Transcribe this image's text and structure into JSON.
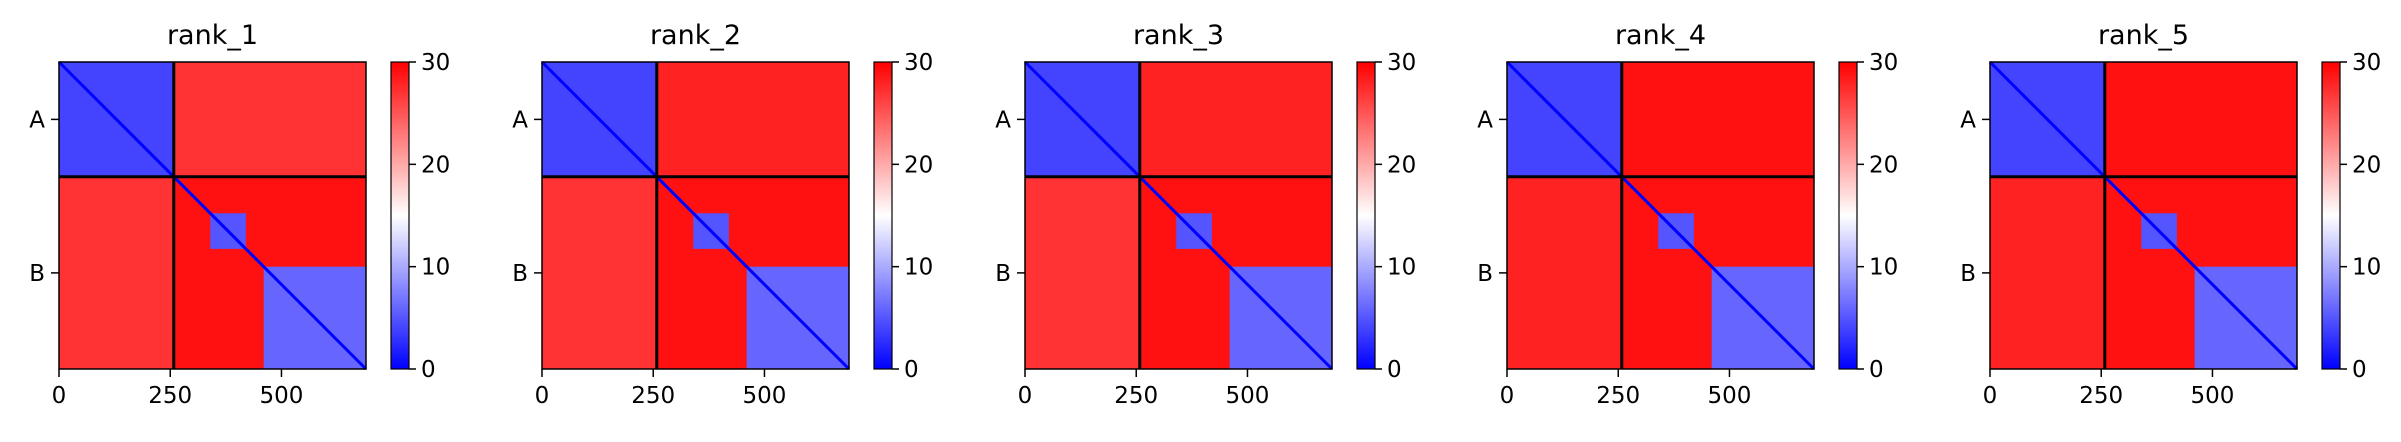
{
  "colorbar": {
    "ticks": [
      "0",
      "10",
      "20",
      "30"
    ],
    "vmin": 0,
    "vmax": 30,
    "colors": {
      "low": "#0000ff",
      "mid": "#ffffff",
      "high": "#ff0000"
    }
  },
  "chart_data": [
    {
      "type": "heatmap",
      "title": "rank_1",
      "xlabel": "",
      "ylabel": "",
      "chains": [
        {
          "name": "A",
          "start": 0,
          "end": 258
        },
        {
          "name": "B",
          "start": 258,
          "end": 690
        }
      ],
      "x_ticks": [
        0,
        250,
        500
      ],
      "y_tick_labels": [
        "A",
        "B"
      ],
      "xlim": [
        0,
        690
      ],
      "value_range": [
        0,
        30
      ],
      "blocks": [
        {
          "x": [
            0,
            258
          ],
          "y": [
            0,
            258
          ],
          "value": 4
        },
        {
          "x": [
            258,
            690
          ],
          "y": [
            0,
            258
          ],
          "value": 27
        },
        {
          "x": [
            0,
            258
          ],
          "y": [
            258,
            690
          ],
          "value": 27
        },
        {
          "x": [
            258,
            690
          ],
          "y": [
            258,
            690
          ],
          "value": 29
        },
        {
          "x": [
            340,
            420
          ],
          "y": [
            340,
            420
          ],
          "value": 5
        },
        {
          "x": [
            460,
            690
          ],
          "y": [
            460,
            690
          ],
          "value": 6
        }
      ]
    },
    {
      "type": "heatmap",
      "title": "rank_2",
      "xlabel": "",
      "ylabel": "",
      "chains": [
        {
          "name": "A",
          "start": 0,
          "end": 258
        },
        {
          "name": "B",
          "start": 258,
          "end": 690
        }
      ],
      "x_ticks": [
        0,
        250,
        500
      ],
      "y_tick_labels": [
        "A",
        "B"
      ],
      "xlim": [
        0,
        690
      ],
      "value_range": [
        0,
        30
      ],
      "blocks": [
        {
          "x": [
            0,
            258
          ],
          "y": [
            0,
            258
          ],
          "value": 4
        },
        {
          "x": [
            258,
            690
          ],
          "y": [
            0,
            258
          ],
          "value": 28
        },
        {
          "x": [
            0,
            258
          ],
          "y": [
            258,
            690
          ],
          "value": 27
        },
        {
          "x": [
            258,
            690
          ],
          "y": [
            258,
            690
          ],
          "value": 29
        },
        {
          "x": [
            340,
            420
          ],
          "y": [
            340,
            420
          ],
          "value": 5
        },
        {
          "x": [
            460,
            690
          ],
          "y": [
            460,
            690
          ],
          "value": 6
        }
      ]
    },
    {
      "type": "heatmap",
      "title": "rank_3",
      "xlabel": "",
      "ylabel": "",
      "chains": [
        {
          "name": "A",
          "start": 0,
          "end": 258
        },
        {
          "name": "B",
          "start": 258,
          "end": 690
        }
      ],
      "x_ticks": [
        0,
        250,
        500
      ],
      "y_tick_labels": [
        "A",
        "B"
      ],
      "xlim": [
        0,
        690
      ],
      "value_range": [
        0,
        30
      ],
      "blocks": [
        {
          "x": [
            0,
            258
          ],
          "y": [
            0,
            258
          ],
          "value": 4
        },
        {
          "x": [
            258,
            690
          ],
          "y": [
            0,
            258
          ],
          "value": 28
        },
        {
          "x": [
            0,
            258
          ],
          "y": [
            258,
            690
          ],
          "value": 27
        },
        {
          "x": [
            258,
            690
          ],
          "y": [
            258,
            690
          ],
          "value": 29
        },
        {
          "x": [
            340,
            420
          ],
          "y": [
            340,
            420
          ],
          "value": 5
        },
        {
          "x": [
            460,
            690
          ],
          "y": [
            460,
            690
          ],
          "value": 6
        }
      ]
    },
    {
      "type": "heatmap",
      "title": "rank_4",
      "xlabel": "",
      "ylabel": "",
      "chains": [
        {
          "name": "A",
          "start": 0,
          "end": 258
        },
        {
          "name": "B",
          "start": 258,
          "end": 690
        }
      ],
      "x_ticks": [
        0,
        250,
        500
      ],
      "y_tick_labels": [
        "A",
        "B"
      ],
      "xlim": [
        0,
        690
      ],
      "value_range": [
        0,
        30
      ],
      "blocks": [
        {
          "x": [
            0,
            258
          ],
          "y": [
            0,
            258
          ],
          "value": 4
        },
        {
          "x": [
            258,
            690
          ],
          "y": [
            0,
            258
          ],
          "value": 29
        },
        {
          "x": [
            0,
            258
          ],
          "y": [
            258,
            690
          ],
          "value": 28
        },
        {
          "x": [
            258,
            690
          ],
          "y": [
            258,
            690
          ],
          "value": 29
        },
        {
          "x": [
            340,
            420
          ],
          "y": [
            340,
            420
          ],
          "value": 5
        },
        {
          "x": [
            460,
            690
          ],
          "y": [
            460,
            690
          ],
          "value": 6
        }
      ]
    },
    {
      "type": "heatmap",
      "title": "rank_5",
      "xlabel": "",
      "ylabel": "",
      "chains": [
        {
          "name": "A",
          "start": 0,
          "end": 258
        },
        {
          "name": "B",
          "start": 258,
          "end": 690
        }
      ],
      "x_ticks": [
        0,
        250,
        500
      ],
      "y_tick_labels": [
        "A",
        "B"
      ],
      "xlim": [
        0,
        690
      ],
      "value_range": [
        0,
        30
      ],
      "blocks": [
        {
          "x": [
            0,
            258
          ],
          "y": [
            0,
            258
          ],
          "value": 4
        },
        {
          "x": [
            258,
            690
          ],
          "y": [
            0,
            258
          ],
          "value": 29
        },
        {
          "x": [
            0,
            258
          ],
          "y": [
            258,
            690
          ],
          "value": 28
        },
        {
          "x": [
            258,
            690
          ],
          "y": [
            258,
            690
          ],
          "value": 29
        },
        {
          "x": [
            340,
            420
          ],
          "y": [
            340,
            420
          ],
          "value": 5
        },
        {
          "x": [
            460,
            690
          ],
          "y": [
            460,
            690
          ],
          "value": 6
        }
      ]
    }
  ]
}
